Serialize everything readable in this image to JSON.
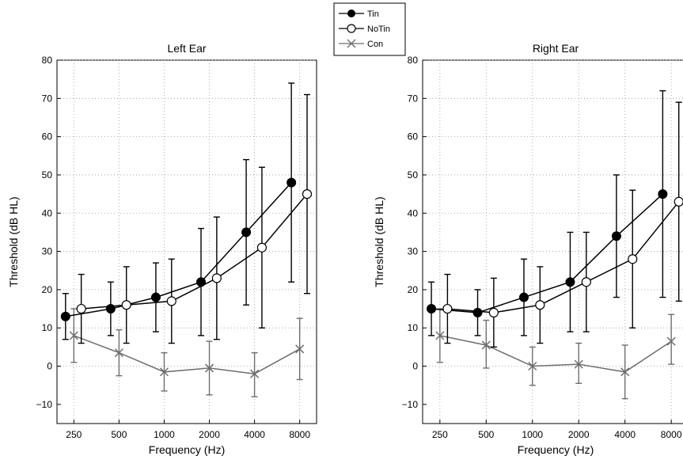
{
  "chart_data": [
    {
      "type": "line",
      "title": "Left Ear",
      "xlabel": "Frequency (Hz)",
      "ylabel": "Threshold (dB HL)",
      "x_tick_labels": [
        "250",
        "500",
        "1000",
        "2000",
        "4000",
        "8000"
      ],
      "y_ticks": [
        -10,
        0,
        10,
        20,
        30,
        40,
        50,
        60,
        70,
        80
      ],
      "y_tick_labels": [
        "−10",
        "0",
        "10",
        "20",
        "30",
        "40",
        "50",
        "60",
        "70",
        "80"
      ],
      "ylim": [
        80,
        -15
      ],
      "x_scale": "log2",
      "grid": true,
      "series": [
        {
          "name": "Tin",
          "marker": "filled-circle",
          "color": "#000000",
          "x": [
            220,
            440,
            880,
            1760,
            3520,
            7040
          ],
          "y": [
            13,
            15,
            18,
            22,
            35,
            48
          ],
          "err_low": [
            19,
            22,
            27,
            36,
            54,
            74
          ],
          "err_high": [
            7,
            8,
            9,
            8,
            16,
            22
          ]
        },
        {
          "name": "NoTin",
          "marker": "open-circle",
          "color": "#000000",
          "x": [
            280,
            560,
            1120,
            2240,
            4480,
            8960
          ],
          "y": [
            15,
            16,
            17,
            23,
            31,
            45
          ],
          "err_low": [
            24,
            26,
            28,
            39,
            52,
            71
          ],
          "err_high": [
            6,
            6,
            6,
            7,
            10,
            19
          ]
        },
        {
          "name": "Con",
          "marker": "x",
          "color": "#6e6e6e",
          "x": [
            250,
            500,
            1000,
            2000,
            4000,
            8000
          ],
          "y": [
            8,
            3.5,
            -1.5,
            -0.5,
            -2,
            4.5
          ],
          "err_low": [
            15,
            9.5,
            3.5,
            6.5,
            3.5,
            12.5
          ],
          "err_high": [
            1,
            -2.5,
            -6.5,
            -7.5,
            -8,
            -3.5
          ]
        }
      ]
    },
    {
      "type": "line",
      "title": "Right Ear",
      "xlabel": "Frequency (Hz)",
      "ylabel": "Threshold (dB HL)",
      "x_tick_labels": [
        "250",
        "500",
        "1000",
        "2000",
        "4000",
        "8000"
      ],
      "y_ticks": [
        -10,
        0,
        10,
        20,
        30,
        40,
        50,
        60,
        70,
        80
      ],
      "y_tick_labels": [
        "−10",
        "0",
        "10",
        "20",
        "30",
        "40",
        "50",
        "60",
        "70",
        "80"
      ],
      "ylim": [
        80,
        -15
      ],
      "x_scale": "log2",
      "grid": true,
      "series": [
        {
          "name": "Tin",
          "marker": "filled-circle",
          "color": "#000000",
          "x": [
            220,
            440,
            880,
            1760,
            3520,
            7040
          ],
          "y": [
            15,
            14,
            18,
            22,
            34,
            45
          ],
          "err_low": [
            22,
            20,
            28,
            35,
            50,
            72
          ],
          "err_high": [
            8,
            8,
            8,
            9,
            18,
            18
          ]
        },
        {
          "name": "NoTin",
          "marker": "open-circle",
          "color": "#000000",
          "x": [
            280,
            560,
            1120,
            2240,
            4480,
            8960
          ],
          "y": [
            15,
            14,
            16,
            22,
            28,
            43
          ],
          "err_low": [
            24,
            23,
            26,
            35,
            46,
            69
          ],
          "err_high": [
            6,
            5,
            6,
            9,
            10,
            17
          ]
        },
        {
          "name": "Con",
          "marker": "x",
          "color": "#6e6e6e",
          "x": [
            250,
            500,
            1000,
            2000,
            4000,
            8000
          ],
          "y": [
            8,
            5.5,
            0,
            0.5,
            -1.5,
            6.5
          ],
          "err_low": [
            15,
            12,
            5,
            6,
            5.5,
            13.5
          ],
          "err_high": [
            1,
            -0.5,
            -5,
            -4.5,
            -8.5,
            0.5
          ]
        }
      ]
    }
  ],
  "legend": {
    "placement": "top-center",
    "entries": [
      {
        "label": "Tin",
        "marker": "filled-circle"
      },
      {
        "label": "NoTin",
        "marker": "open-circle"
      },
      {
        "label": "Con",
        "marker": "x"
      }
    ]
  }
}
